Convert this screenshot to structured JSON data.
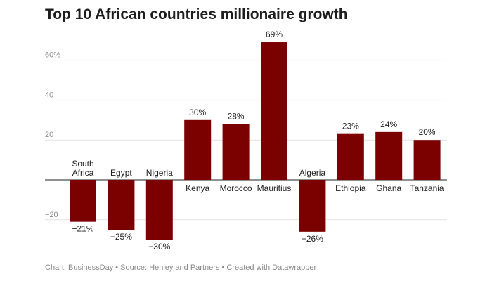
{
  "chart_data": {
    "type": "bar",
    "title": "Top 10 African countries millionaire growth",
    "categories": [
      "South Africa",
      "Egypt",
      "Nigeria",
      "Kenya",
      "Morocco",
      "Mauritius",
      "Algeria",
      "Ethiopia",
      "Ghana",
      "Tanzania"
    ],
    "category_lines": [
      [
        "South",
        "Africa"
      ],
      [
        "Egypt"
      ],
      [
        "Nigeria"
      ],
      [
        "Kenya"
      ],
      [
        "Morocco"
      ],
      [
        "Mauritius"
      ],
      [
        "Algeria"
      ],
      [
        "Ethiopia"
      ],
      [
        "Ghana"
      ],
      [
        "Tanzania"
      ]
    ],
    "values": [
      -21,
      -25,
      -30,
      30,
      28,
      69,
      -26,
      23,
      24,
      20
    ],
    "value_labels": [
      "−21%",
      "−25%",
      "−30%",
      "30%",
      "28%",
      "69%",
      "−26%",
      "23%",
      "24%",
      "20%"
    ],
    "ylim": [
      -35,
      75
    ],
    "yticks": [
      -20,
      20,
      40,
      60
    ],
    "ytick_labels": [
      "−20",
      "20",
      "40",
      "60%"
    ],
    "xlabel": "",
    "ylabel": "",
    "bar_color": "#7b0000",
    "grid": true
  },
  "footer": "Chart: BusinessDay • Source: Henley and Partners • Created with Datawrapper"
}
